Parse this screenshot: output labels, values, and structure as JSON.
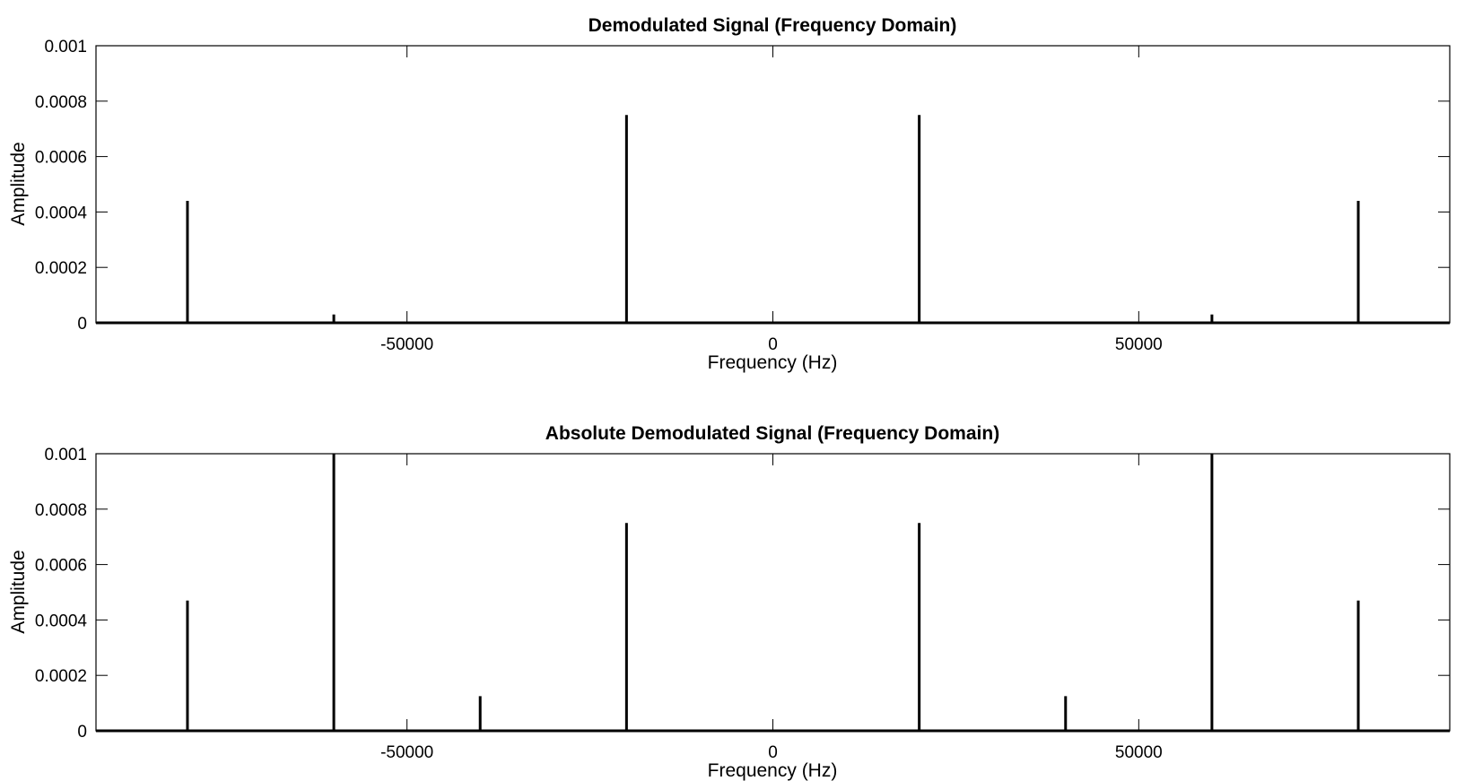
{
  "chart_data": [
    {
      "type": "stem",
      "title": "Demodulated Signal (Frequency Domain)",
      "xlabel": "Frequency (Hz)",
      "ylabel": "Amplitude",
      "xlim": [
        -92500,
        92500
      ],
      "ylim": [
        0,
        0.001
      ],
      "xticks": [
        -50000,
        0,
        50000
      ],
      "xtick_labels": [
        "-50000",
        "0",
        "50000"
      ],
      "yticks": [
        0,
        0.0002,
        0.0004,
        0.0006,
        0.0008,
        0.001
      ],
      "ytick_labels": [
        "0",
        "0.0002",
        "0.0004",
        "0.0006",
        "0.0008",
        "0.001"
      ],
      "grid": false,
      "color": "#000000",
      "x": [
        -80000,
        -60000,
        -20000,
        20000,
        60000,
        80000
      ],
      "y": [
        0.00044,
        3e-05,
        0.00075,
        0.00075,
        3e-05,
        0.00044
      ]
    },
    {
      "type": "stem",
      "title": "Absolute Demodulated Signal (Frequency Domain)",
      "xlabel": "Frequency (Hz)",
      "ylabel": "Amplitude",
      "xlim": [
        -92500,
        92500
      ],
      "ylim": [
        0,
        0.001
      ],
      "xticks": [
        -50000,
        0,
        50000
      ],
      "xtick_labels": [
        "-50000",
        "0",
        "50000"
      ],
      "yticks": [
        0,
        0.0002,
        0.0004,
        0.0006,
        0.0008,
        0.001
      ],
      "ytick_labels": [
        "0",
        "0.0002",
        "0.0004",
        "0.0006",
        "0.0008",
        "0.001"
      ],
      "grid": false,
      "color": "#000000",
      "x": [
        -80000,
        -60000,
        -40000,
        -20000,
        20000,
        40000,
        60000,
        80000
      ],
      "y": [
        0.00047,
        0.001,
        0.000125,
        0.00075,
        0.00075,
        0.000125,
        0.001,
        0.00047
      ]
    }
  ]
}
